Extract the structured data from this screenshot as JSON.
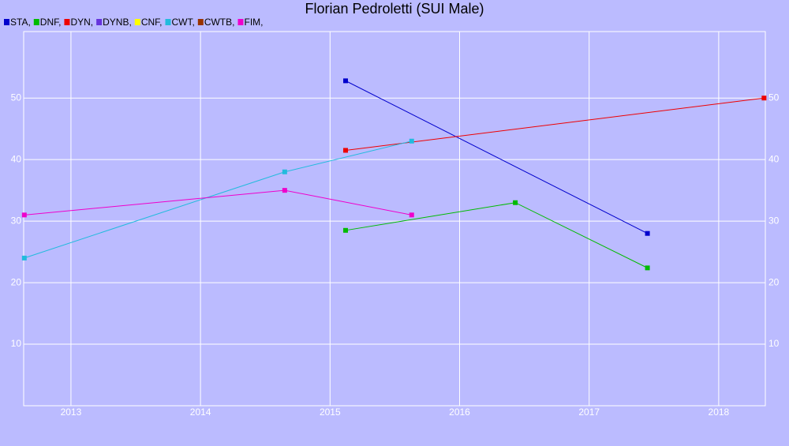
{
  "chart_data": {
    "type": "line",
    "title": "Florian Pedroletti (SUI Male)",
    "xlim": [
      2012.635,
      2018.36
    ],
    "xticks": [
      2013,
      2014,
      2015,
      2016,
      2017,
      2018
    ],
    "ylim": [
      0,
      60.8
    ],
    "yticks": [
      10,
      20,
      30,
      40,
      50
    ],
    "grid": true,
    "series": [
      {
        "name": "STA,",
        "color": "#0000cc",
        "x": [
          2015.12,
          2017.45
        ],
        "values": [
          52.8,
          28
        ]
      },
      {
        "name": "DNF,",
        "color": "#00bb00",
        "x": [
          2015.12,
          2016.43,
          2017.45
        ],
        "values": [
          28.5,
          33,
          22.4
        ]
      },
      {
        "name": "DYN,",
        "color": "#ee0000",
        "x": [
          2015.12,
          2018.35
        ],
        "values": [
          41.5,
          50
        ]
      },
      {
        "name": "DYNB,",
        "color": "#6633dd",
        "x": [],
        "values": []
      },
      {
        "name": "CNF,",
        "color": "#ffff00",
        "x": [],
        "values": []
      },
      {
        "name": "CWT,",
        "color": "#22bbdd",
        "x": [
          2012.64,
          2014.65,
          2015.63
        ],
        "values": [
          24,
          38,
          43
        ]
      },
      {
        "name": "CWTB,",
        "color": "#993300",
        "x": [],
        "values": []
      },
      {
        "name": "FIM,",
        "color": "#ee00cc",
        "x": [
          2012.64,
          2014.65,
          2015.63
        ],
        "values": [
          31,
          35,
          31
        ]
      }
    ]
  }
}
